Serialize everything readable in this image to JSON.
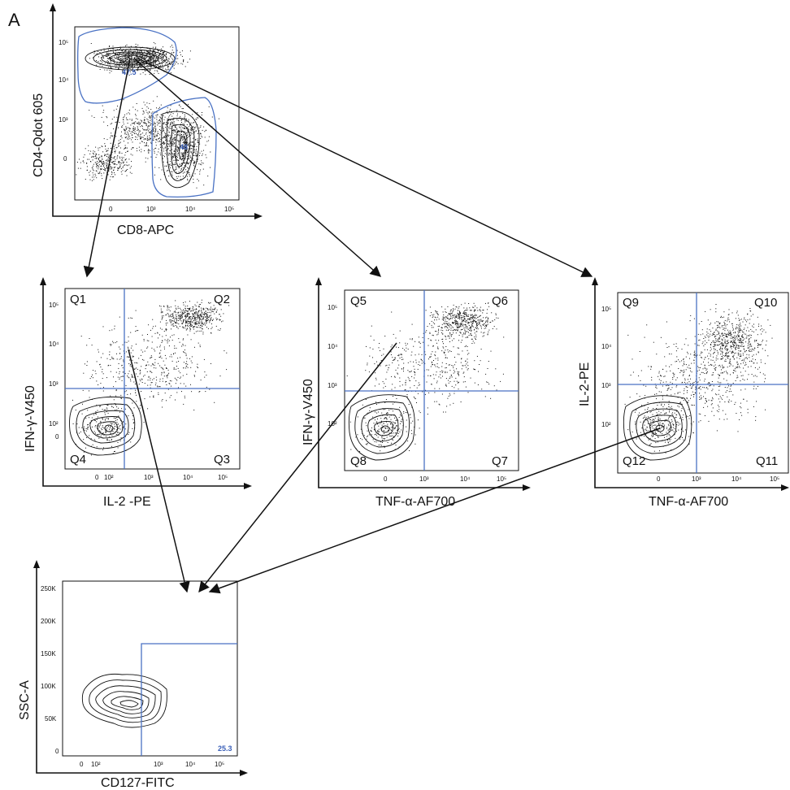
{
  "figure_label": "A",
  "colors": {
    "gate": "#4a72c4",
    "ink": "#111111"
  },
  "panels": {
    "top": {
      "ylabel": "CD4-Qdot 605",
      "xlabel": "CD8-APC",
      "y_ticks": [
        "10⁵",
        "10⁴",
        "10³",
        "0"
      ],
      "x_ticks": [
        "0",
        "10³",
        "10⁴",
        "10⁵"
      ],
      "gate_cd4": "47.5",
      "gate_cd8": "48"
    },
    "p1": {
      "ylabel": "IFN-γ-V450",
      "xlabel": "IL-2 -PE",
      "y_ticks": [
        "10⁵",
        "10⁴",
        "10³",
        "10²",
        "0"
      ],
      "x_ticks": [
        "0",
        "10²",
        "10³",
        "10⁴",
        "10⁵"
      ],
      "quadrants": [
        "Q1",
        "Q2",
        "Q3",
        "Q4"
      ]
    },
    "p2": {
      "ylabel": "IFN-γ-V450",
      "xlabel": "TNF-α-AF700",
      "y_ticks": [
        "10⁵",
        "10⁴",
        "10³",
        "10²"
      ],
      "x_ticks": [
        "0",
        "10³",
        "10⁴",
        "10⁵"
      ],
      "quadrants": [
        "Q5",
        "Q6",
        "Q7",
        "Q8"
      ]
    },
    "p3": {
      "ylabel": "IL-2-PE",
      "xlabel": "TNF-α-AF700",
      "y_ticks": [
        "10⁵",
        "10⁴",
        "10³",
        "10²"
      ],
      "x_ticks": [
        "0",
        "10³",
        "10⁴",
        "10⁵"
      ],
      "quadrants": [
        "Q9",
        "Q10",
        "Q11",
        "Q12"
      ]
    },
    "bottom": {
      "ylabel": "SSC-A",
      "xlabel": "CD127-FITC",
      "y_ticks": [
        "250K",
        "200K",
        "150K",
        "100K",
        "50K",
        "0"
      ],
      "x_ticks": [
        "0",
        "10²",
        "10³",
        "10⁴",
        "10⁵"
      ],
      "gate_pct": "25.3"
    }
  }
}
